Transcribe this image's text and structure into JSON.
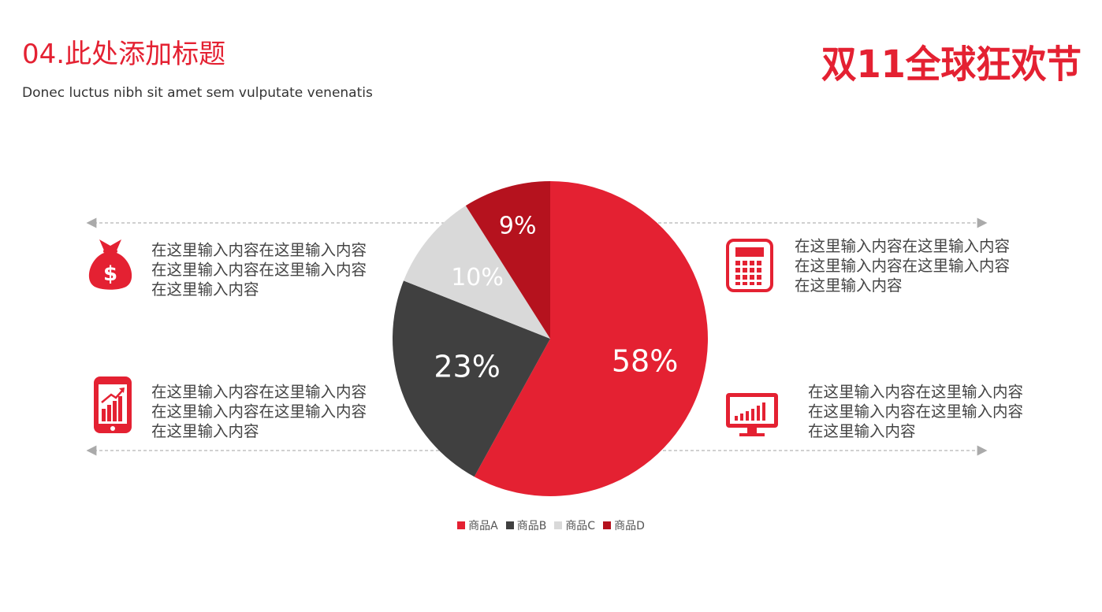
{
  "slide": {
    "title": "04.此处添加标题",
    "subtitle": "Donec luctus nibh sit amet sem vulputate venenatis",
    "logo_text": "双11全球狂欢节"
  },
  "blocks": [
    {
      "id": "top-left",
      "text": "在这里输入内容在这里输入内容在这里输入内容在这里输入内容在这里输入内容",
      "icon": "money-bag-icon"
    },
    {
      "id": "bottom-left",
      "text": "在这里输入内容在这里输入内容在这里输入内容在这里输入内容在这里输入内容",
      "icon": "phone-growth-chart-icon"
    },
    {
      "id": "top-right",
      "text": "在这里输入内容在这里输入内容在这里输入内容在这里输入内容在这里输入内容",
      "icon": "calculator-icon"
    },
    {
      "id": "bottom-right",
      "text": "在这里输入内容在这里输入内容在这里输入内容在这里输入内容在这里输入内容",
      "icon": "monitor-bar-chart-icon"
    }
  ],
  "colors": {
    "accent": "#e42132",
    "series": [
      "#e42132",
      "#404040",
      "#d9d9d9",
      "#b5121e"
    ]
  },
  "chart_data": {
    "type": "pie",
    "categories": [
      "商品A",
      "商品B",
      "商品C",
      "商品D"
    ],
    "values": [
      58,
      23,
      10,
      9
    ],
    "labels": [
      "58%",
      "23%",
      "10%",
      "9%"
    ],
    "legend": "bottom"
  }
}
